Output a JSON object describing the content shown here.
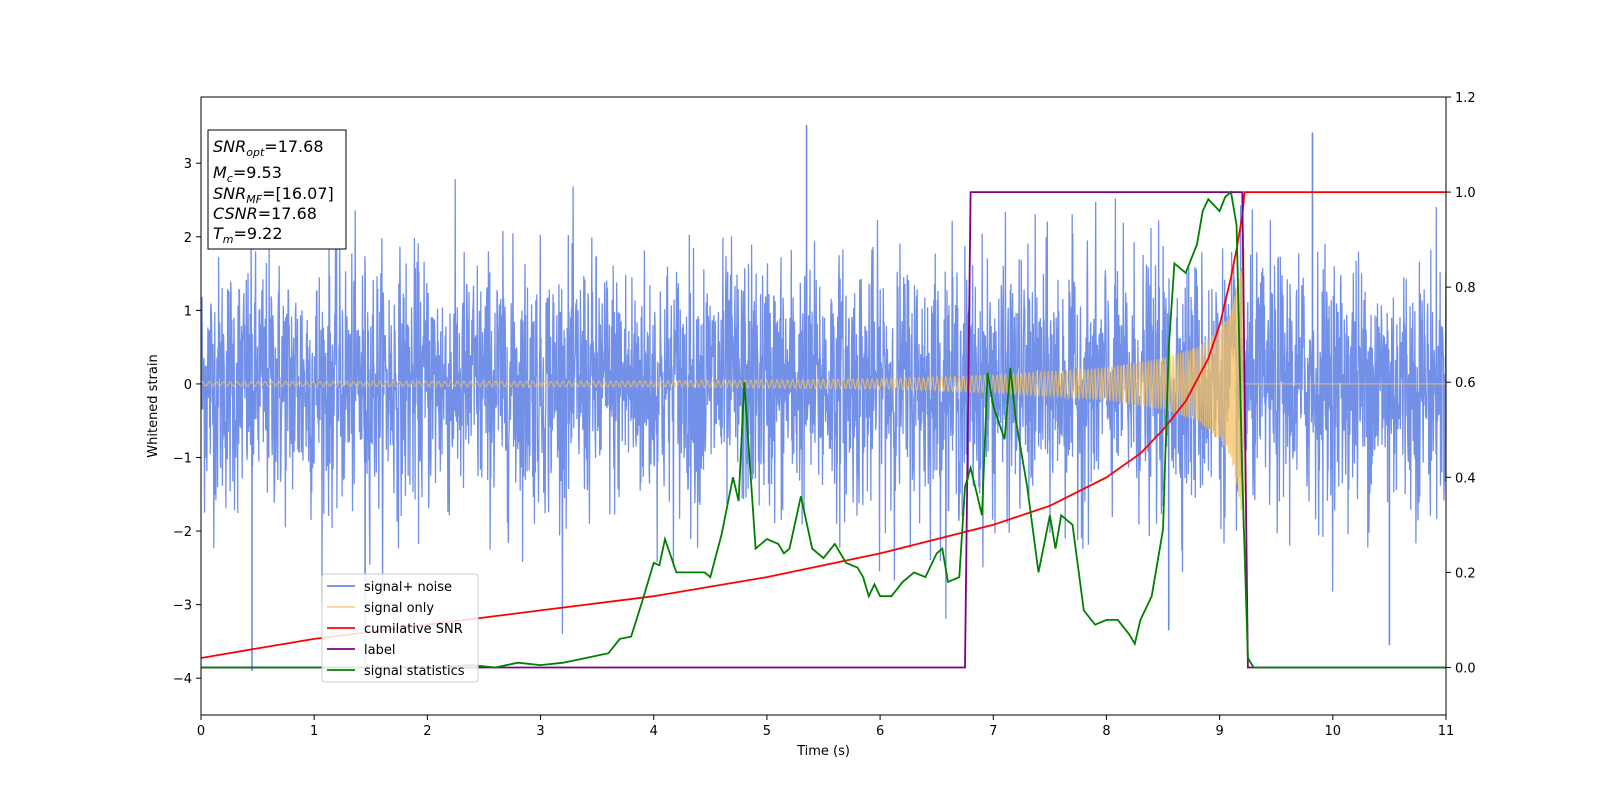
{
  "chart_data": {
    "type": "line",
    "xlabel": "Time (s)",
    "ylabel": "Whitened strain",
    "xlim": [
      0,
      11
    ],
    "ylim_left": [
      -4.5,
      3.9
    ],
    "ylim_right": [
      -0.1,
      1.2
    ],
    "x_ticks": [
      0,
      1,
      2,
      3,
      4,
      5,
      6,
      7,
      8,
      9,
      10,
      11
    ],
    "y_ticks_left": [
      -4,
      -3,
      -2,
      -1,
      0,
      1,
      2,
      3
    ],
    "y_ticks_right": [
      0.0,
      0.2,
      0.4,
      0.6,
      0.8,
      1.0,
      1.2
    ],
    "x_tick_labels": [
      "0",
      "1",
      "2",
      "3",
      "4",
      "5",
      "6",
      "7",
      "8",
      "9",
      "10",
      "11"
    ],
    "y_tick_labels_left": [
      "−4",
      "−3",
      "−2",
      "−1",
      "0",
      "1",
      "2",
      "3"
    ],
    "y_tick_labels_right": [
      "0.0",
      "0.2",
      "0.4",
      "0.6",
      "0.8",
      "1.0",
      "1.2"
    ],
    "info_box": {
      "snr_opt": {
        "sym": "SNR",
        "sub": "opt",
        "value": "=17.68"
      },
      "mc": {
        "sym": "M",
        "sub": "c",
        "value": "=9.53"
      },
      "snr_mf": {
        "sym": "SNR",
        "sub": "MF",
        "value": "=[16.07]"
      },
      "csnr": {
        "sym": "CSNR",
        "value": "=17.68"
      },
      "tm": {
        "sym": "T",
        "sub": "m",
        "value": "=9.22"
      }
    },
    "legend_position": "lower-left",
    "series": [
      {
        "name": "signal+ noise",
        "color": "#6a8ae6",
        "axis": "left",
        "description": "whitened strain, approx. unit-variance noise with peaks up to ~3.5 and down to ~-3.9",
        "noise_amplitude_sd": 0.85,
        "extreme_peaks": [
          [
            5.35,
            3.52
          ],
          [
            9.82,
            3.42
          ],
          [
            0.45,
            -3.9
          ],
          [
            1.45,
            -3.8
          ],
          [
            10.5,
            -3.55
          ],
          [
            8.55,
            -3.35
          ]
        ]
      },
      {
        "name": "signal only",
        "color": "#f5c060",
        "axis": "left",
        "description": "chirp waveform, amplitude growing toward merger then zero",
        "chirp_amplitude": [
          [
            0,
            0.03
          ],
          [
            4,
            0.04
          ],
          [
            6,
            0.07
          ],
          [
            7,
            0.12
          ],
          [
            8,
            0.22
          ],
          [
            8.5,
            0.35
          ],
          [
            8.8,
            0.5
          ],
          [
            9.0,
            0.75
          ],
          [
            9.1,
            1.0
          ],
          [
            9.18,
            1.6
          ],
          [
            9.22,
            2.2
          ],
          [
            9.23,
            0.0
          ],
          [
            11,
            0.0
          ]
        ],
        "merger_time": 9.22
      },
      {
        "name": "cumilative SNR",
        "color": "#ff0000",
        "axis": "right",
        "points": [
          [
            0,
            0.02
          ],
          [
            0.5,
            0.04
          ],
          [
            1,
            0.06
          ],
          [
            2,
            0.09
          ],
          [
            3,
            0.12
          ],
          [
            4,
            0.15
          ],
          [
            5,
            0.19
          ],
          [
            6,
            0.24
          ],
          [
            6.5,
            0.27
          ],
          [
            7,
            0.3
          ],
          [
            7.5,
            0.34
          ],
          [
            8,
            0.4
          ],
          [
            8.3,
            0.45
          ],
          [
            8.5,
            0.5
          ],
          [
            8.7,
            0.56
          ],
          [
            8.9,
            0.65
          ],
          [
            9.0,
            0.72
          ],
          [
            9.1,
            0.82
          ],
          [
            9.15,
            0.88
          ],
          [
            9.2,
            0.95
          ],
          [
            9.22,
            1.0
          ],
          [
            11,
            1.0
          ]
        ]
      },
      {
        "name": "label",
        "color": "#800080",
        "axis": "right",
        "points": [
          [
            0,
            0.0
          ],
          [
            6.75,
            0.0
          ],
          [
            6.8,
            1.0
          ],
          [
            9.2,
            1.0
          ],
          [
            9.25,
            0.0
          ],
          [
            11,
            0.0
          ]
        ]
      },
      {
        "name": "signal statistics",
        "color": "#008000",
        "axis": "right",
        "points": [
          [
            0,
            0.0
          ],
          [
            0.4,
            0.0
          ],
          [
            0.8,
            0.0
          ],
          [
            1.2,
            0.0
          ],
          [
            1.6,
            0.0
          ],
          [
            2.0,
            0.0
          ],
          [
            2.4,
            0.005
          ],
          [
            2.6,
            0.0
          ],
          [
            2.8,
            0.01
          ],
          [
            3.0,
            0.005
          ],
          [
            3.2,
            0.01
          ],
          [
            3.4,
            0.02
          ],
          [
            3.6,
            0.03
          ],
          [
            3.7,
            0.06
          ],
          [
            3.8,
            0.065
          ],
          [
            3.9,
            0.14
          ],
          [
            4.0,
            0.22
          ],
          [
            4.05,
            0.215
          ],
          [
            4.1,
            0.27
          ],
          [
            4.2,
            0.2
          ],
          [
            4.3,
            0.2
          ],
          [
            4.4,
            0.2
          ],
          [
            4.45,
            0.2
          ],
          [
            4.5,
            0.19
          ],
          [
            4.6,
            0.28
          ],
          [
            4.7,
            0.4
          ],
          [
            4.75,
            0.35
          ],
          [
            4.8,
            0.6
          ],
          [
            4.9,
            0.25
          ],
          [
            5.0,
            0.27
          ],
          [
            5.1,
            0.26
          ],
          [
            5.15,
            0.24
          ],
          [
            5.2,
            0.25
          ],
          [
            5.3,
            0.36
          ],
          [
            5.4,
            0.25
          ],
          [
            5.5,
            0.23
          ],
          [
            5.6,
            0.26
          ],
          [
            5.7,
            0.22
          ],
          [
            5.8,
            0.21
          ],
          [
            5.85,
            0.19
          ],
          [
            5.9,
            0.15
          ],
          [
            5.95,
            0.175
          ],
          [
            6.0,
            0.15
          ],
          [
            6.1,
            0.15
          ],
          [
            6.2,
            0.18
          ],
          [
            6.3,
            0.2
          ],
          [
            6.4,
            0.19
          ],
          [
            6.5,
            0.24
          ],
          [
            6.55,
            0.25
          ],
          [
            6.6,
            0.18
          ],
          [
            6.7,
            0.19
          ],
          [
            6.75,
            0.38
          ],
          [
            6.8,
            0.42
          ],
          [
            6.9,
            0.32
          ],
          [
            6.95,
            0.62
          ],
          [
            7.0,
            0.55
          ],
          [
            7.1,
            0.48
          ],
          [
            7.15,
            0.63
          ],
          [
            7.2,
            0.52
          ],
          [
            7.3,
            0.38
          ],
          [
            7.4,
            0.2
          ],
          [
            7.5,
            0.32
          ],
          [
            7.55,
            0.25
          ],
          [
            7.6,
            0.32
          ],
          [
            7.7,
            0.3
          ],
          [
            7.8,
            0.12
          ],
          [
            7.9,
            0.09
          ],
          [
            8.0,
            0.1
          ],
          [
            8.1,
            0.1
          ],
          [
            8.2,
            0.07
          ],
          [
            8.25,
            0.05
          ],
          [
            8.3,
            0.1
          ],
          [
            8.4,
            0.15
          ],
          [
            8.5,
            0.29
          ],
          [
            8.55,
            0.67
          ],
          [
            8.6,
            0.85
          ],
          [
            8.7,
            0.83
          ],
          [
            8.8,
            0.89
          ],
          [
            8.85,
            0.96
          ],
          [
            8.9,
            0.985
          ],
          [
            9.0,
            0.96
          ],
          [
            9.05,
            0.99
          ],
          [
            9.1,
            1.0
          ],
          [
            9.15,
            0.93
          ],
          [
            9.2,
            0.4
          ],
          [
            9.25,
            0.02
          ],
          [
            9.3,
            0.0
          ],
          [
            10,
            0.0
          ],
          [
            11,
            0.0
          ]
        ]
      }
    ]
  }
}
